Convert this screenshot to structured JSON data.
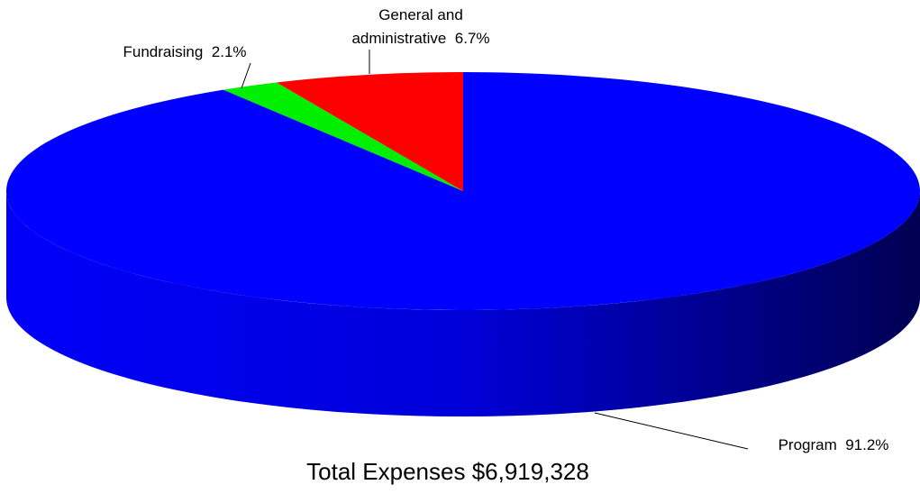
{
  "chart_data": {
    "type": "pie",
    "title": "Total Expenses $6,919,328",
    "categories": [
      "General and administrative",
      "Fundraising",
      "Program"
    ],
    "values": [
      6.7,
      2.1,
      91.2
    ],
    "value_labels": [
      "6.7%",
      "2.1%",
      "91.2%"
    ],
    "colors": [
      "#ff0000",
      "#00ee00",
      "#0000ff"
    ]
  }
}
